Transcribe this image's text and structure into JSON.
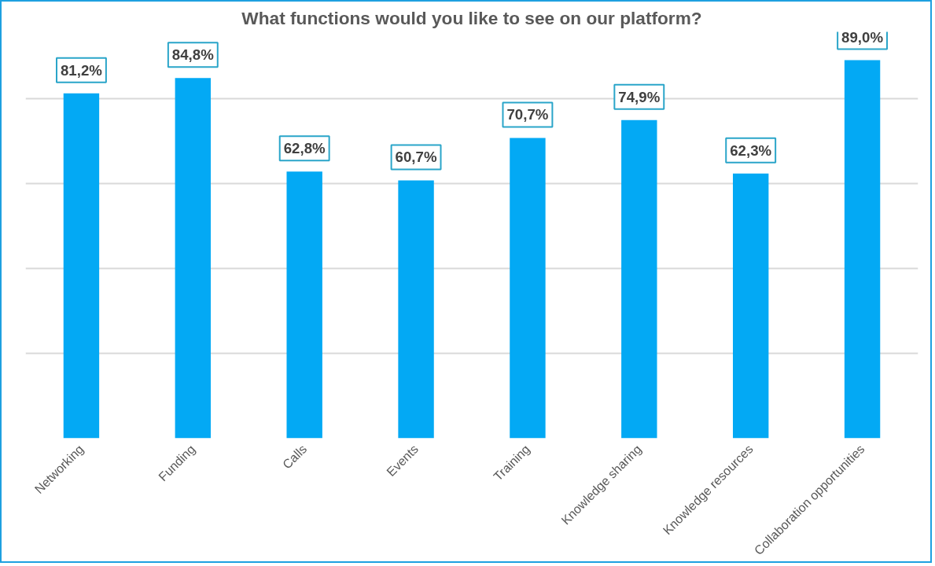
{
  "chart_data": {
    "type": "bar",
    "title": "What functions would you like to see on our platform?",
    "categories": [
      "Networking",
      "Funding",
      "Calls",
      "Events",
      "Training",
      "Knowledge sharing",
      "Knowledge resources",
      "Collaboration opportunities"
    ],
    "values": [
      81.2,
      84.8,
      62.8,
      60.7,
      70.7,
      74.9,
      62.3,
      89.0
    ],
    "value_labels": [
      "81,2%",
      "84,8%",
      "62,8%",
      "60,7%",
      "70,7%",
      "74,9%",
      "62,3%",
      "89,0%"
    ],
    "color": "#03a9f4",
    "grid": "y",
    "tick_labels": "x"
  }
}
